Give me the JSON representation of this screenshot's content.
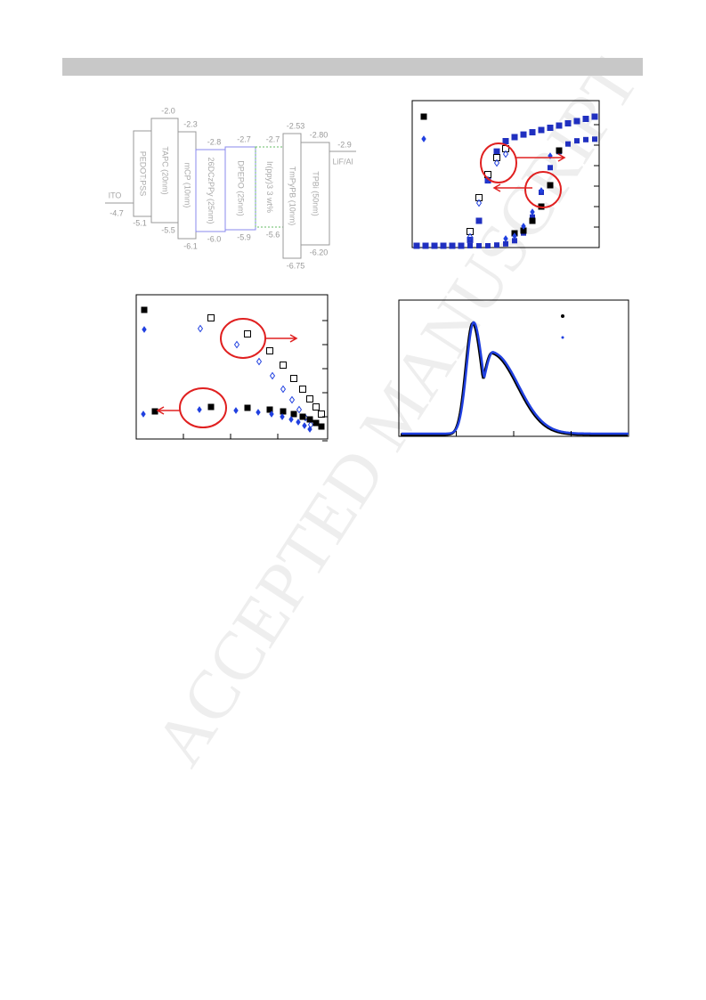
{
  "watermark": "ACCEPTED MANUSCRIPT",
  "energy_diagram": {
    "layers": [
      {
        "label": "ITO",
        "levels": [
          "-4.7"
        ]
      },
      {
        "label": "PEDOT:PSS",
        "levels": [
          "-5.1"
        ]
      },
      {
        "label": "TAPC (20nm)",
        "levels": [
          "-2.0",
          "-5.5"
        ]
      },
      {
        "label": "mCP (10nm)",
        "levels": [
          "-2.3",
          "-6.1"
        ]
      },
      {
        "label": "26DCzPPy (25nm)",
        "levels": [
          "-2.8",
          "-6.0"
        ]
      },
      {
        "label": "DPEPO (25nm)",
        "levels": [
          "-2.7",
          "-5.9"
        ]
      },
      {
        "label": "Ir(ppy)3 3 wt%",
        "levels": [
          "-2.7",
          "-5.6"
        ]
      },
      {
        "label": "TmPyPB (10nm)",
        "levels": [
          "-2.53",
          "-6.75"
        ]
      },
      {
        "label": "TPBi (50nm)",
        "levels": [
          "-2.80",
          "-6.20"
        ]
      },
      {
        "label": "LiF/Al",
        "levels": [
          "-2.9"
        ]
      }
    ]
  }
}
